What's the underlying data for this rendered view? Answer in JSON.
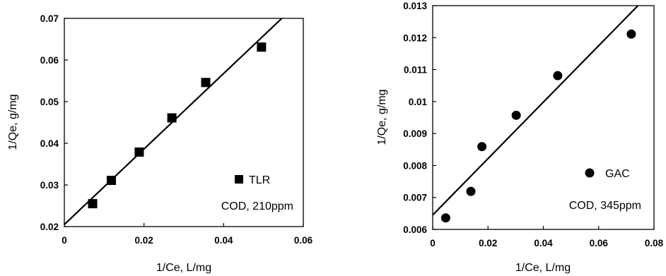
{
  "chart_data": [
    {
      "type": "scatter",
      "xlabel": "1/Ce, L/mg",
      "ylabel": "1/Qe, g/mg",
      "xlim": [
        0,
        0.06
      ],
      "ylim": [
        0.02,
        0.07
      ],
      "x_ticks": [
        "0",
        "0.02",
        "0.04",
        "0.06"
      ],
      "y_ticks": [
        "0.02",
        "0.03",
        "0.04",
        "0.05",
        "0.06",
        "0.07"
      ],
      "grid": false,
      "legend_position": "bottom-right",
      "series": [
        {
          "name": "TLR",
          "marker": "square",
          "x": [
            0.0071,
            0.0118,
            0.0188,
            0.027,
            0.0355,
            0.0495
          ],
          "y": [
            0.0255,
            0.0311,
            0.0379,
            0.0461,
            0.0546,
            0.0631
          ]
        }
      ],
      "trendline": {
        "x": [
          0,
          0.0546
        ],
        "y": [
          0.0205,
          0.07
        ]
      },
      "annotation": "COD, 210ppm"
    },
    {
      "type": "scatter",
      "xlabel": "1/Ce, L/mg",
      "ylabel": "1/Qe, g/mg",
      "xlim": [
        0,
        0.08
      ],
      "ylim": [
        0.006,
        0.013
      ],
      "x_ticks": [
        "0",
        "0.02",
        "0.04",
        "0.06",
        "0.08"
      ],
      "y_ticks": [
        "0.006",
        "0.007",
        "0.008",
        "0.009",
        "0.01",
        "0.011",
        "0.012",
        "0.013"
      ],
      "grid": false,
      "legend_position": "bottom-right",
      "series": [
        {
          "name": "GAC",
          "marker": "circle",
          "x": [
            0.0047,
            0.0138,
            0.0178,
            0.0302,
            0.0452,
            0.0718
          ],
          "y": [
            0.00636,
            0.00719,
            0.00859,
            0.00957,
            0.01081,
            0.01211
          ]
        }
      ],
      "trendline": {
        "x": [
          0,
          0.0742
        ],
        "y": [
          0.00645,
          0.013
        ]
      },
      "annotation": "COD, 345ppm"
    }
  ]
}
